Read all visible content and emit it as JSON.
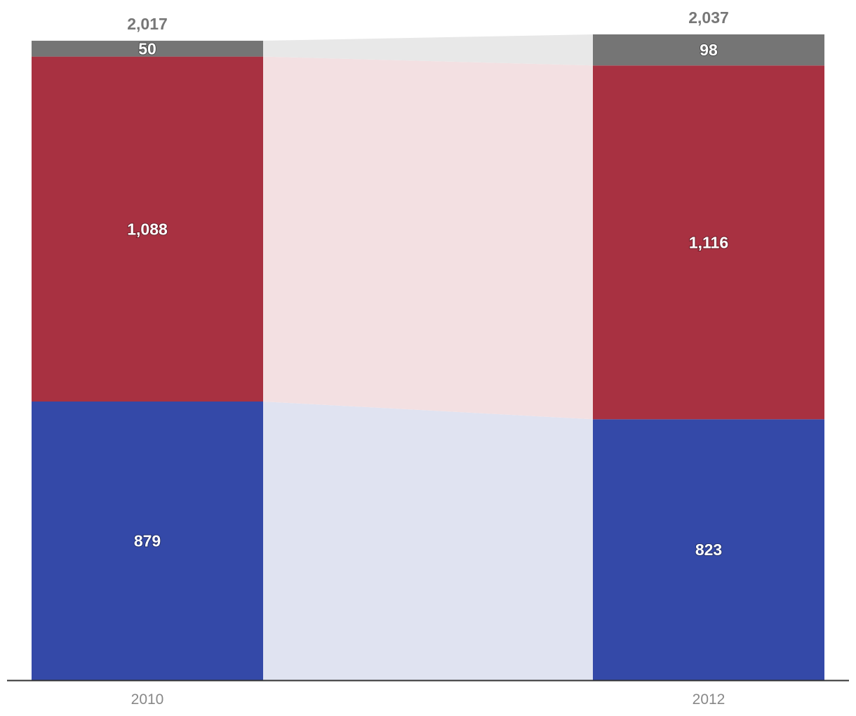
{
  "chart_data": {
    "type": "bar",
    "stacked": true,
    "categories": [
      "2010",
      "2012"
    ],
    "totals": [
      "2,017",
      "2,037"
    ],
    "series": [
      {
        "values": [
          879,
          823
        ],
        "labels": [
          "879",
          "823"
        ],
        "color": "#3449a8",
        "ribbon_color": "#e0e3f1"
      },
      {
        "values": [
          1088,
          1116
        ],
        "labels": [
          "1,088",
          "1,116"
        ],
        "color": "#a83141",
        "ribbon_color": "#f3e0e2"
      },
      {
        "values": [
          50,
          98
        ],
        "labels": [
          "50",
          "98"
        ],
        "color": "#757575",
        "ribbon_color": "#e8e8e8"
      }
    ],
    "total_color": "#777777",
    "axis_color": "#333333",
    "ylim": [
      0,
      2037
    ],
    "grid": false,
    "legend": "none"
  }
}
